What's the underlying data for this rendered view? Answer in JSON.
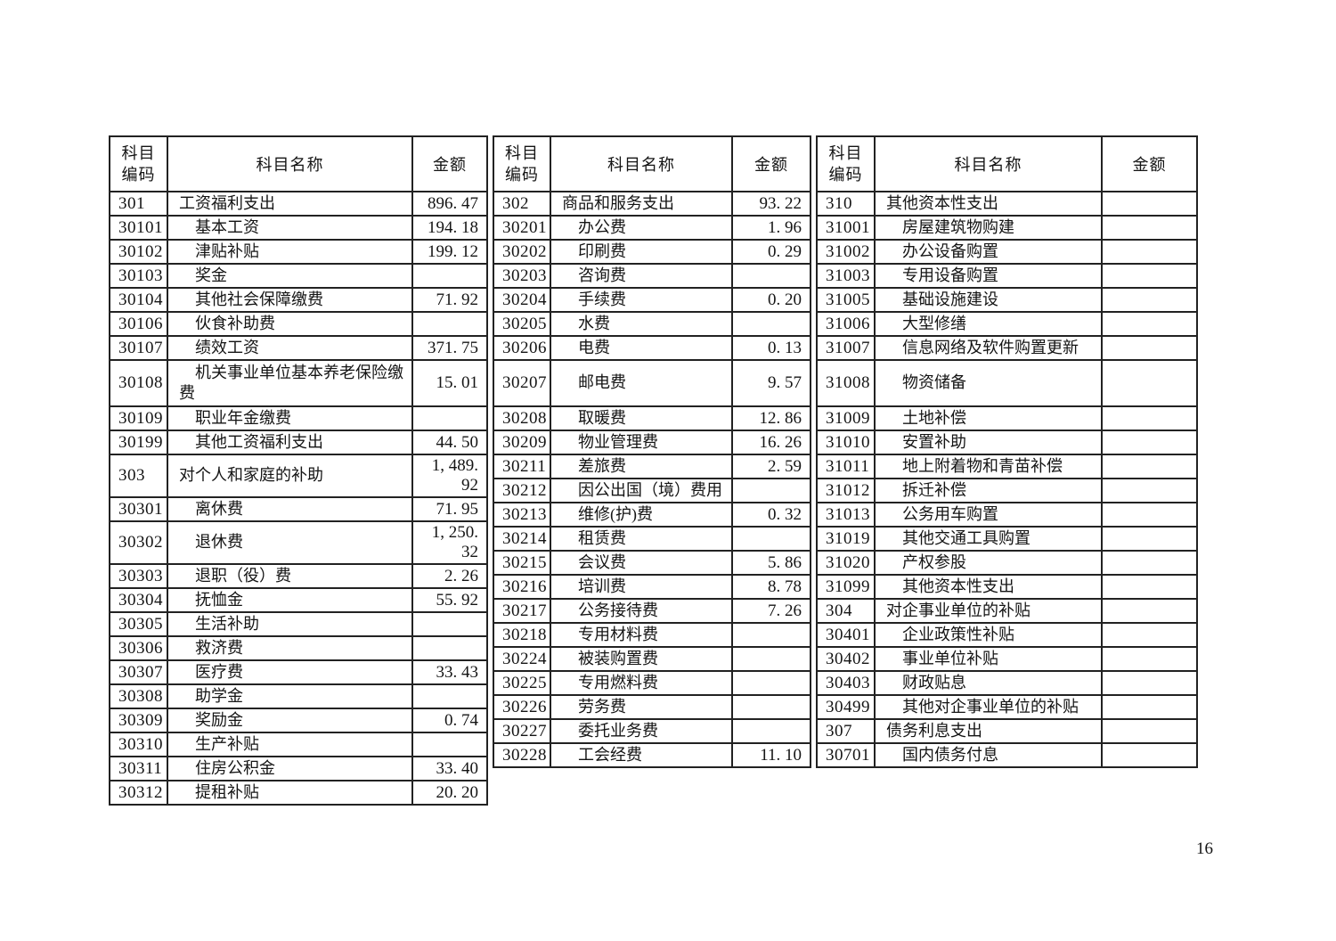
{
  "page_number": "16",
  "table": {
    "headers": {
      "code": "科目\n编码",
      "name": "科目名称",
      "amount": "金额"
    },
    "groups": [
      {
        "rows": [
          {
            "code": "301",
            "name": "工资福利支出",
            "amount": "896. 47",
            "level": 0
          },
          {
            "code": "30101",
            "name": "基本工资",
            "amount": "194. 18",
            "level": 1
          },
          {
            "code": "30102",
            "name": "津贴补贴",
            "amount": "199. 12",
            "level": 1
          },
          {
            "code": "30103",
            "name": "奖金",
            "amount": "",
            "level": 1
          },
          {
            "code": "30104",
            "name": "其他社会保障缴费",
            "amount": "71. 92",
            "level": 1
          },
          {
            "code": "30106",
            "name": "伙食补助费",
            "amount": "",
            "level": 1
          },
          {
            "code": "30107",
            "name": "绩效工资",
            "amount": "371. 75",
            "level": 1
          },
          {
            "code": "30108",
            "name": "机关事业单位基本养老保险缴费",
            "amount": "15. 01",
            "level": 1,
            "tall": true
          },
          {
            "code": "30109",
            "name": "职业年金缴费",
            "amount": "",
            "level": 1
          },
          {
            "code": "30199",
            "name": "其他工资福利支出",
            "amount": "44. 50",
            "level": 1
          },
          {
            "code": "303",
            "name": "对个人和家庭的补助",
            "amount": "1, 489. 92",
            "level": 0
          },
          {
            "code": "30301",
            "name": "离休费",
            "amount": "71. 95",
            "level": 1
          },
          {
            "code": "30302",
            "name": "退休费",
            "amount": "1, 250. 32",
            "level": 1
          },
          {
            "code": "30303",
            "name": "退职（役）费",
            "amount": "2. 26",
            "level": 1
          },
          {
            "code": "30304",
            "name": "抚恤金",
            "amount": "55. 92",
            "level": 1
          },
          {
            "code": "30305",
            "name": "生活补助",
            "amount": "",
            "level": 1
          },
          {
            "code": "30306",
            "name": "救济费",
            "amount": "",
            "level": 1
          },
          {
            "code": "30307",
            "name": "医疗费",
            "amount": "33. 43",
            "level": 1
          },
          {
            "code": "30308",
            "name": "助学金",
            "amount": "",
            "level": 1
          },
          {
            "code": "30309",
            "name": "奖励金",
            "amount": "0. 74",
            "level": 1
          },
          {
            "code": "30310",
            "name": "生产补贴",
            "amount": "",
            "level": 1
          },
          {
            "code": "30311",
            "name": "住房公积金",
            "amount": "33. 40",
            "level": 1
          },
          {
            "code": "30312",
            "name": "提租补贴",
            "amount": "20. 20",
            "level": 1
          }
        ]
      },
      {
        "rows": [
          {
            "code": "302",
            "name": "商品和服务支出",
            "amount": "93. 22",
            "level": 0
          },
          {
            "code": "30201",
            "name": "办公费",
            "amount": "1. 96",
            "level": 1
          },
          {
            "code": "30202",
            "name": "印刷费",
            "amount": "0. 29",
            "level": 1
          },
          {
            "code": "30203",
            "name": "咨询费",
            "amount": "",
            "level": 1
          },
          {
            "code": "30204",
            "name": "手续费",
            "amount": "0. 20",
            "level": 1
          },
          {
            "code": "30205",
            "name": "水费",
            "amount": "",
            "level": 1
          },
          {
            "code": "30206",
            "name": "电费",
            "amount": "0. 13",
            "level": 1
          },
          {
            "code": "30207",
            "name": "邮电费",
            "amount": "9. 57",
            "level": 1,
            "tall": true
          },
          {
            "code": "30208",
            "name": "取暖费",
            "amount": "12. 86",
            "level": 1
          },
          {
            "code": "30209",
            "name": "物业管理费",
            "amount": "16. 26",
            "level": 1
          },
          {
            "code": "30211",
            "name": "差旅费",
            "amount": "2. 59",
            "level": 1
          },
          {
            "code": "30212",
            "name": "因公出国（境）费用",
            "amount": "",
            "level": 1
          },
          {
            "code": "30213",
            "name": "维修(护)费",
            "amount": "0. 32",
            "level": 1
          },
          {
            "code": "30214",
            "name": "租赁费",
            "amount": "",
            "level": 1
          },
          {
            "code": "30215",
            "name": "会议费",
            "amount": "5. 86",
            "level": 1
          },
          {
            "code": "30216",
            "name": "培训费",
            "amount": "8. 78",
            "level": 1
          },
          {
            "code": "30217",
            "name": "公务接待费",
            "amount": "7. 26",
            "level": 1
          },
          {
            "code": "30218",
            "name": "专用材料费",
            "amount": "",
            "level": 1
          },
          {
            "code": "30224",
            "name": "被装购置费",
            "amount": "",
            "level": 1
          },
          {
            "code": "30225",
            "name": "专用燃料费",
            "amount": "",
            "level": 1
          },
          {
            "code": "30226",
            "name": "劳务费",
            "amount": "",
            "level": 1
          },
          {
            "code": "30227",
            "name": "委托业务费",
            "amount": "",
            "level": 1
          },
          {
            "code": "30228",
            "name": "工会经费",
            "amount": "11. 10",
            "level": 1
          }
        ]
      },
      {
        "rows": [
          {
            "code": "310",
            "name": "其他资本性支出",
            "amount": "",
            "level": 0
          },
          {
            "code": "31001",
            "name": "房屋建筑物购建",
            "amount": "",
            "level": 1
          },
          {
            "code": "31002",
            "name": "办公设备购置",
            "amount": "",
            "level": 1
          },
          {
            "code": "31003",
            "name": "专用设备购置",
            "amount": "",
            "level": 1
          },
          {
            "code": "31005",
            "name": "基础设施建设",
            "amount": "",
            "level": 1
          },
          {
            "code": "31006",
            "name": "大型修缮",
            "amount": "",
            "level": 1
          },
          {
            "code": "31007",
            "name": "信息网络及软件购置更新",
            "amount": "",
            "level": 1
          },
          {
            "code": "31008",
            "name": "物资储备",
            "amount": "",
            "level": 1,
            "tall": true
          },
          {
            "code": "31009",
            "name": "土地补偿",
            "amount": "",
            "level": 1
          },
          {
            "code": "31010",
            "name": "安置补助",
            "amount": "",
            "level": 1
          },
          {
            "code": "31011",
            "name": "地上附着物和青苗补偿",
            "amount": "",
            "level": 1
          },
          {
            "code": "31012",
            "name": "拆迁补偿",
            "amount": "",
            "level": 1
          },
          {
            "code": "31013",
            "name": "公务用车购置",
            "amount": "",
            "level": 1
          },
          {
            "code": "31019",
            "name": "其他交通工具购置",
            "amount": "",
            "level": 1
          },
          {
            "code": "31020",
            "name": "产权参股",
            "amount": "",
            "level": 1
          },
          {
            "code": "31099",
            "name": "其他资本性支出",
            "amount": "",
            "level": 1
          },
          {
            "code": "304",
            "name": "对企事业单位的补贴",
            "amount": "",
            "level": 0
          },
          {
            "code": "30401",
            "name": "企业政策性补贴",
            "amount": "",
            "level": 1
          },
          {
            "code": "30402",
            "name": "事业单位补贴",
            "amount": "",
            "level": 1
          },
          {
            "code": "30403",
            "name": "财政贴息",
            "amount": "",
            "level": 1
          },
          {
            "code": "30499",
            "name": "其他对企事业单位的补贴",
            "amount": "",
            "level": 1
          },
          {
            "code": "307",
            "name": "债务利息支出",
            "amount": "",
            "level": 0
          },
          {
            "code": "30701",
            "name": "国内债务付息",
            "amount": "",
            "level": 1
          }
        ]
      }
    ]
  }
}
